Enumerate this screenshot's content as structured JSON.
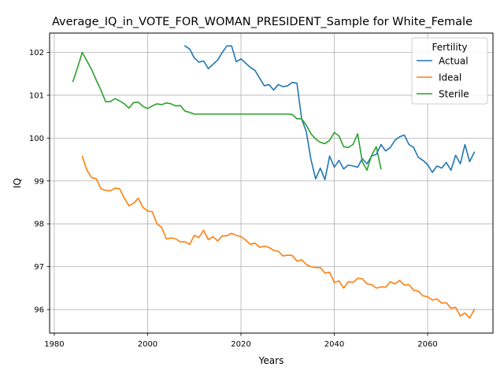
{
  "chart_data": {
    "type": "line",
    "title": "Average_IQ_in_VOTE_FOR_WOMAN_PRESIDENT_Sample for White_Female",
    "xlabel": "Years",
    "ylabel": "IQ",
    "xlim": [
      1979,
      2074
    ],
    "ylim": [
      95.45,
      102.45
    ],
    "xticks": [
      1980,
      2000,
      2020,
      2040,
      2060
    ],
    "xtick_labels": [
      "1980",
      "2000",
      "2020",
      "2040",
      "2060"
    ],
    "yticks": [
      96,
      97,
      98,
      99,
      100,
      101,
      102
    ],
    "ytick_labels": [
      "96",
      "97",
      "98",
      "99",
      "100",
      "101",
      "102"
    ],
    "grid": true,
    "legend": {
      "title": "Fertility",
      "placement": "top-right"
    },
    "series": [
      {
        "name": "Actual",
        "color": "#1f77b4",
        "x": [
          2008,
          2009,
          2010,
          2011,
          2012,
          2013,
          2014,
          2015,
          2016,
          2017,
          2018,
          2019,
          2020,
          2021,
          2022,
          2023,
          2024,
          2025,
          2026,
          2027,
          2028,
          2029,
          2030,
          2031,
          2032,
          2033,
          2034,
          2035,
          2036,
          2037,
          2038,
          2039,
          2040,
          2041,
          2042,
          2043,
          2044,
          2045,
          2046,
          2047,
          2048,
          2049,
          2050,
          2051,
          2052,
          2053,
          2054,
          2055,
          2056,
          2057,
          2058,
          2059,
          2060,
          2061,
          2062,
          2063,
          2064,
          2065,
          2066,
          2067,
          2068,
          2069,
          2070
        ],
        "y": [
          102.15,
          102.08,
          101.87,
          101.77,
          101.8,
          101.62,
          101.72,
          101.82,
          102.0,
          102.15,
          102.15,
          101.78,
          101.85,
          101.75,
          101.65,
          101.58,
          101.4,
          101.22,
          101.25,
          101.12,
          101.25,
          101.2,
          101.22,
          101.3,
          101.28,
          100.45,
          100.15,
          99.5,
          99.05,
          99.3,
          99.03,
          99.58,
          99.32,
          99.48,
          99.28,
          99.37,
          99.35,
          99.32,
          99.52,
          99.4,
          99.58,
          99.62,
          99.85,
          99.7,
          99.78,
          99.95,
          100.03,
          100.07,
          99.85,
          99.78,
          99.55,
          99.48,
          99.38,
          99.2,
          99.35,
          99.3,
          99.43,
          99.25,
          99.6,
          99.4,
          99.85,
          99.45,
          99.67
        ]
      },
      {
        "name": "Ideal",
        "color": "#ff7f0e",
        "x": [
          1986,
          1987,
          1988,
          1989,
          1990,
          1991,
          1992,
          1993,
          1994,
          1995,
          1996,
          1997,
          1998,
          1999,
          2000,
          2001,
          2002,
          2003,
          2004,
          2005,
          2006,
          2007,
          2008,
          2009,
          2010,
          2011,
          2012,
          2013,
          2014,
          2015,
          2016,
          2017,
          2018,
          2019,
          2020,
          2021,
          2022,
          2023,
          2024,
          2025,
          2026,
          2027,
          2028,
          2029,
          2030,
          2031,
          2032,
          2033,
          2034,
          2035,
          2036,
          2037,
          2038,
          2039,
          2040,
          2041,
          2042,
          2043,
          2044,
          2045,
          2046,
          2047,
          2048,
          2049,
          2050,
          2051,
          2052,
          2053,
          2054,
          2055,
          2056,
          2057,
          2058,
          2059,
          2060,
          2061,
          2062,
          2063,
          2064,
          2065,
          2066,
          2067,
          2068,
          2069,
          2070
        ],
        "y": [
          99.57,
          99.25,
          99.08,
          99.05,
          98.82,
          98.78,
          98.77,
          98.83,
          98.82,
          98.6,
          98.42,
          98.48,
          98.6,
          98.38,
          98.3,
          98.28,
          98.0,
          97.92,
          97.65,
          97.67,
          97.65,
          97.58,
          97.58,
          97.52,
          97.73,
          97.68,
          97.85,
          97.63,
          97.7,
          97.6,
          97.72,
          97.72,
          97.78,
          97.73,
          97.7,
          97.62,
          97.52,
          97.55,
          97.45,
          97.48,
          97.45,
          97.38,
          97.36,
          97.25,
          97.27,
          97.26,
          97.13,
          97.16,
          97.05,
          97.0,
          96.98,
          96.98,
          96.85,
          96.87,
          96.63,
          96.67,
          96.5,
          96.65,
          96.63,
          96.73,
          96.72,
          96.6,
          96.58,
          96.5,
          96.53,
          96.52,
          96.65,
          96.6,
          96.68,
          96.57,
          96.58,
          96.45,
          96.43,
          96.32,
          96.3,
          96.22,
          96.25,
          96.15,
          96.16,
          96.03,
          96.05,
          95.85,
          95.92,
          95.8,
          96.0
        ]
      },
      {
        "name": "Sterile",
        "color": "#2ca02c",
        "x": [
          1984,
          1985,
          1986,
          1987,
          1988,
          1989,
          1990,
          1991,
          1992,
          1993,
          1994,
          1995,
          1996,
          1997,
          1998,
          1999,
          2000,
          2001,
          2002,
          2003,
          2004,
          2005,
          2006,
          2007,
          2008,
          2009,
          2010,
          2011,
          2012,
          2013,
          2014,
          2015,
          2016,
          2017,
          2018,
          2019,
          2020,
          2021,
          2022,
          2023,
          2024,
          2025,
          2026,
          2027,
          2028,
          2029,
          2030,
          2031,
          2032,
          2033,
          2034,
          2035,
          2036,
          2037,
          2038,
          2039,
          2040,
          2041,
          2042,
          2043,
          2044,
          2045,
          2046,
          2047,
          2048,
          2049,
          2050
        ],
        "y": [
          101.32,
          101.65,
          102.0,
          101.8,
          101.6,
          101.35,
          101.12,
          100.85,
          100.85,
          100.92,
          100.87,
          100.8,
          100.7,
          100.83,
          100.84,
          100.74,
          100.69,
          100.75,
          100.8,
          100.78,
          100.82,
          100.8,
          100.75,
          100.76,
          100.63,
          100.6,
          100.56,
          100.56,
          100.56,
          100.56,
          100.56,
          100.56,
          100.56,
          100.56,
          100.56,
          100.56,
          100.56,
          100.56,
          100.56,
          100.56,
          100.56,
          100.56,
          100.56,
          100.56,
          100.56,
          100.56,
          100.56,
          100.55,
          100.45,
          100.45,
          100.3,
          100.1,
          99.98,
          99.9,
          99.87,
          99.95,
          100.13,
          100.05,
          99.8,
          99.78,
          99.85,
          100.1,
          99.45,
          99.25,
          99.6,
          99.8,
          99.28
        ]
      }
    ]
  }
}
